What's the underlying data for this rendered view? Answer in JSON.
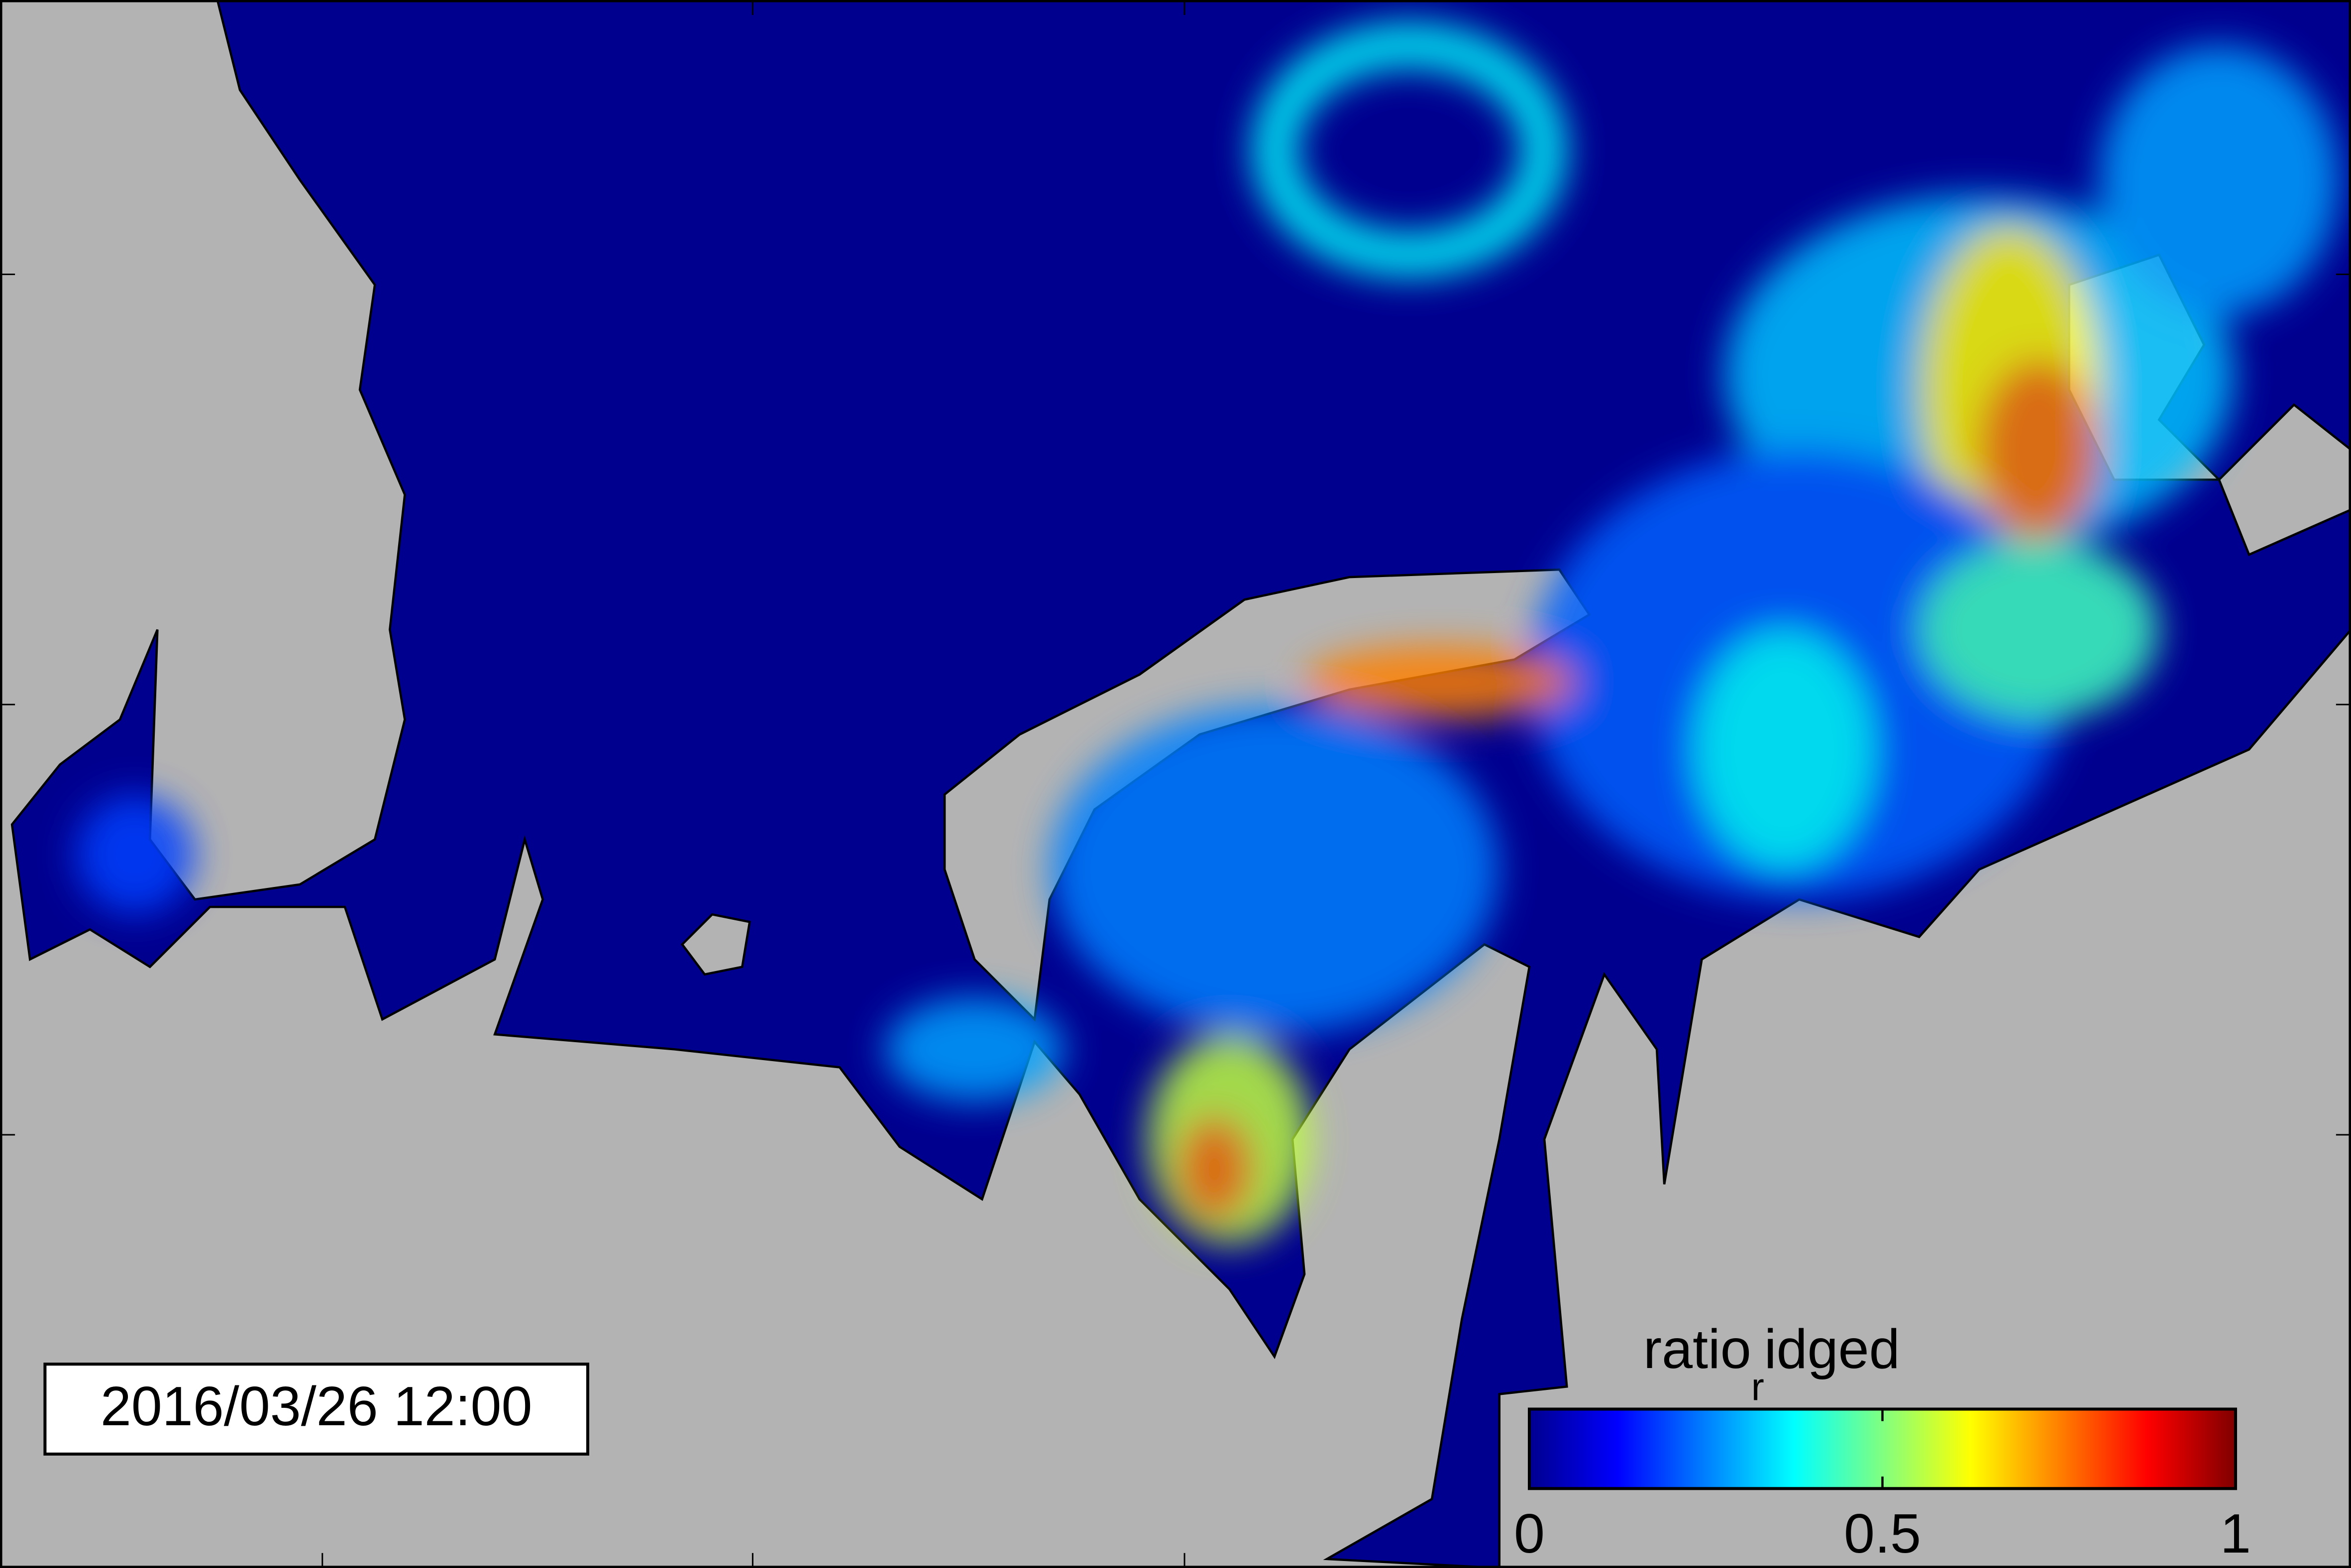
{
  "timestamp": "2016/03/26 12:00",
  "colorbar": {
    "label": {
      "main": "ratio",
      "sub": "r",
      "rest": "idged"
    },
    "range": [
      0,
      1
    ],
    "ticks": [
      0,
      0.5,
      1
    ],
    "colormap": [
      "#00008f",
      "#0000ff",
      "#0080ff",
      "#00ffff",
      "#80ff80",
      "#ffff00",
      "#ff8000",
      "#ff0000",
      "#800000"
    ]
  }
}
